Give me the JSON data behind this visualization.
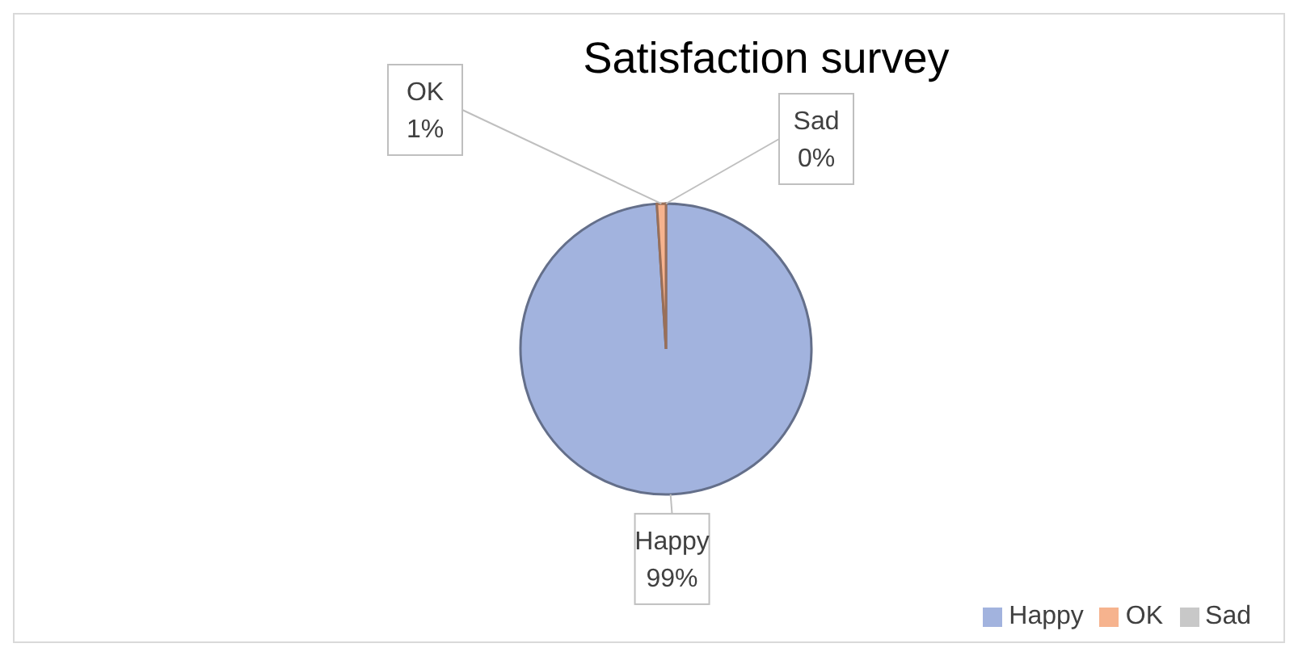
{
  "chart_data": {
    "type": "pie",
    "title": "Satisfaction survey",
    "categories": [
      "Happy",
      "OK",
      "Sad"
    ],
    "values": [
      99,
      1,
      0
    ],
    "value_labels": [
      "99%",
      "1%",
      "0%"
    ],
    "colors": [
      "#a2b3de",
      "#f6b38e",
      "#c8c8c8"
    ],
    "legend": "bottom right"
  }
}
